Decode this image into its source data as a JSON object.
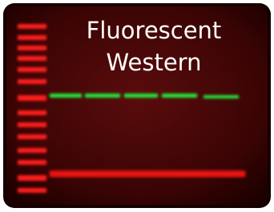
{
  "title": {
    "line1": "Fluorescent",
    "line2": "Western"
  }
}
